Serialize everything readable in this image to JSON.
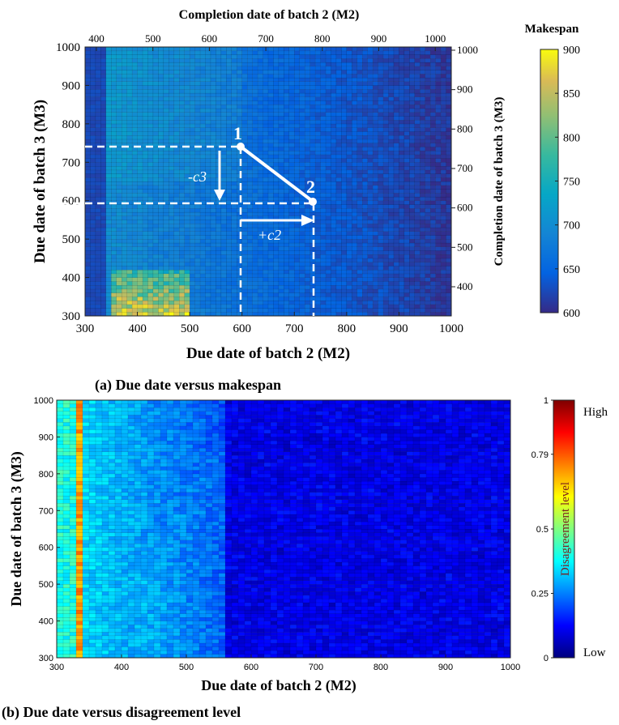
{
  "chart_data": [
    {
      "type": "heatmap",
      "panel_caption": "(a) Due date versus makespan",
      "xlabel": "Due date of batch 2 (M2)",
      "ylabel": "Due date of batch 3 (M3)",
      "top_xlabel": "Completion date of batch 2 (M2)",
      "right_ylabel": "Completion date of batch 3 (M3)",
      "xlim": [
        300,
        1000
      ],
      "ylim": [
        300,
        1000
      ],
      "x_ticks": [
        "300",
        "400",
        "500",
        "600",
        "700",
        "800",
        "900",
        "1000"
      ],
      "y_ticks": [
        "300",
        "400",
        "500",
        "600",
        "700",
        "800",
        "900",
        "1000"
      ],
      "top_ticks": [
        "400",
        "500",
        "600",
        "700",
        "800",
        "900",
        "1000"
      ],
      "right_ticks": [
        "400",
        "500",
        "600",
        "700",
        "800",
        "900",
        "1000"
      ],
      "colorbar": {
        "title": "Makespan",
        "min": 600,
        "max": 900,
        "ticks": [
          "600",
          "650",
          "700",
          "750",
          "800",
          "850",
          "900"
        ]
      },
      "annotations": {
        "point1": {
          "label": "1",
          "x": 600,
          "y": 745
        },
        "point2": {
          "label": "2",
          "x": 735,
          "y": 590
        },
        "arrow_c3": "-c3",
        "arrow_c2": "+c2"
      }
    },
    {
      "type": "heatmap",
      "panel_caption": "(b) Due date versus disagreement level",
      "xlabel": "Due date of batch 2 (M2)",
      "ylabel": "Due date of batch 3 (M3)",
      "xlim": [
        300,
        1000
      ],
      "ylim": [
        300,
        1000
      ],
      "x_ticks": [
        "300",
        "400",
        "500",
        "600",
        "700",
        "800",
        "900",
        "1000"
      ],
      "y_ticks": [
        "300",
        "400",
        "500",
        "600",
        "700",
        "800",
        "900",
        "1000"
      ],
      "colorbar": {
        "title": "Disagreement level",
        "min": 0,
        "max": 1,
        "ticks": [
          "0",
          "0.25",
          "0.5",
          "0.79",
          "1"
        ],
        "high_label": "High",
        "low_label": "Low"
      }
    }
  ]
}
